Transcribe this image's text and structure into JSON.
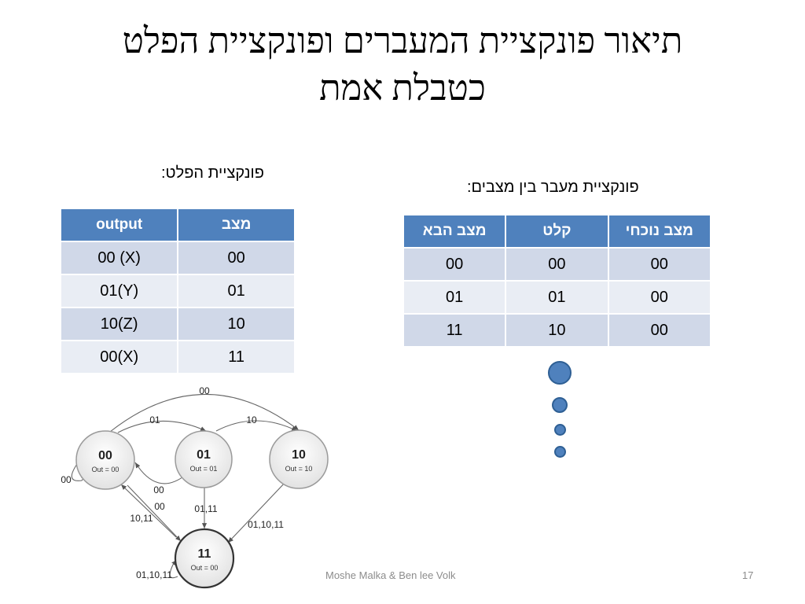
{
  "slide": {
    "title_line1": "תיאור פונקציית המעברים ופונקציית הפלט",
    "title_line2": "כטבלת אמת",
    "footer": "Moshe Malka & Ben lee Volk",
    "page_number": "17"
  },
  "output_table": {
    "caption": "פונקציית הפלט:",
    "headers": [
      "output",
      "מצב"
    ],
    "rows": [
      [
        "00 (X)",
        "00"
      ],
      [
        "01(Y)",
        "01"
      ],
      [
        "10(Z)",
        "10"
      ],
      [
        "00(X)",
        "11"
      ]
    ]
  },
  "transition_table": {
    "caption": "פונקציית מעבר בין מצבים:",
    "headers": [
      "מצב נוכחי",
      "קלט",
      "מצב הבא"
    ],
    "rows": [
      [
        "00",
        "00",
        "00"
      ],
      [
        "00",
        "01",
        "01"
      ],
      [
        "00",
        "10",
        "11"
      ]
    ]
  },
  "state_diagram": {
    "states": [
      {
        "name": "00",
        "out": "Out = 00"
      },
      {
        "name": "01",
        "out": "Out = 01"
      },
      {
        "name": "10",
        "out": "Out = 10"
      },
      {
        "name": "11",
        "out": "Out = 00"
      }
    ],
    "edge_labels": {
      "top_00": "00",
      "s00_s01": "01",
      "s01_s10": "10",
      "self_00": "00",
      "s01_s00": "00",
      "s11_s00_a": "00",
      "s00_s11": "10,11",
      "s01_s11": "01,11",
      "s10_s11": "01,10,11",
      "self_11": "01,10,11"
    }
  },
  "colors": {
    "header": "#4f81bd",
    "row_odd": "#d0d8e8",
    "row_even": "#e9edf4",
    "dot": "#4f81bd"
  }
}
